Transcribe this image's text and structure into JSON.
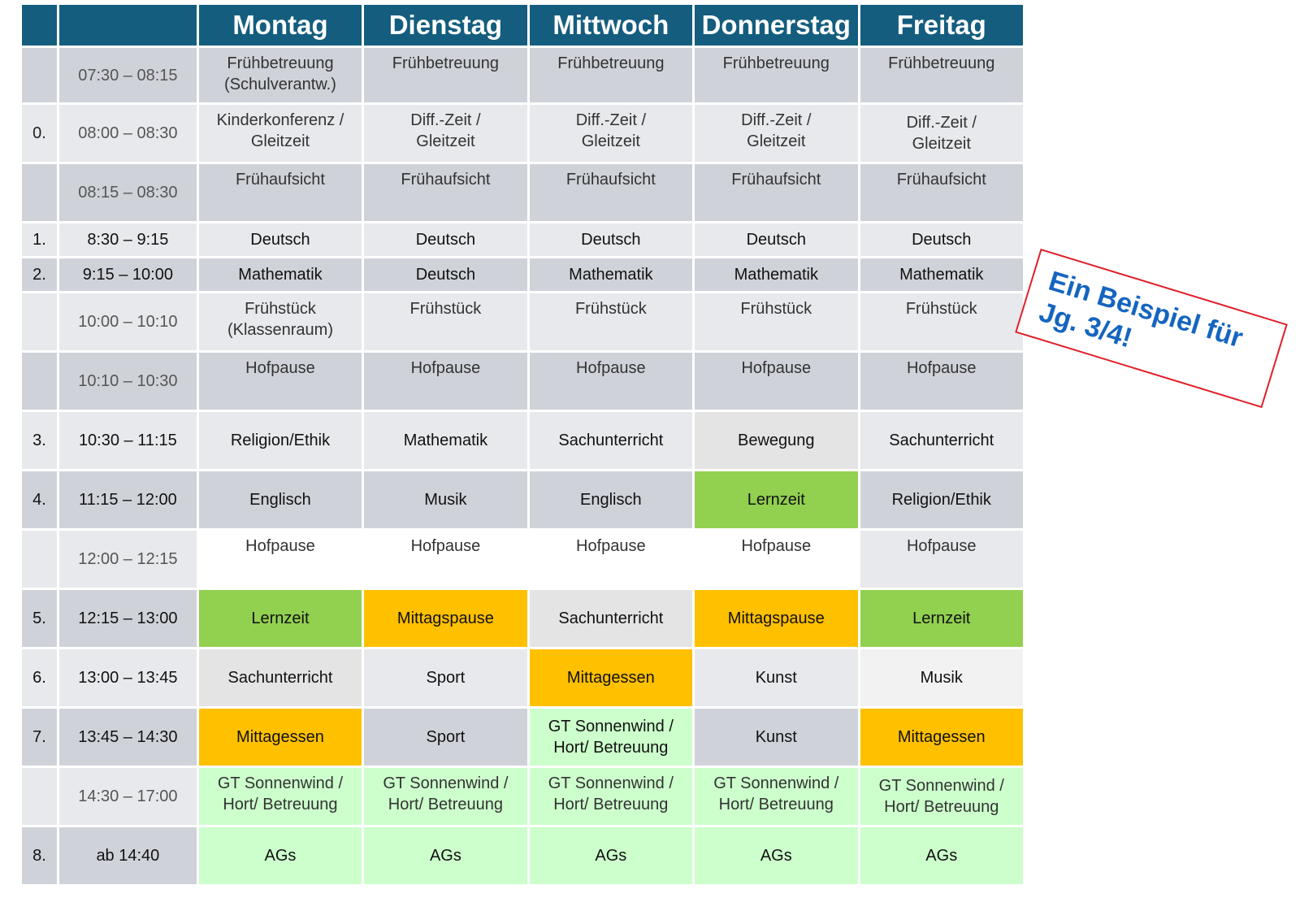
{
  "colors": {
    "header": "#145d7e",
    "dark": "#cfd3d9",
    "light": "#e7e9ec",
    "grey": "#e4e4e4",
    "verylight": "#f2f2f2",
    "white": "#ffffff",
    "green": "#92d050",
    "orange": "#ffc000",
    "lightgreen": "#ccffcc",
    "stamp_border": "#e0202a",
    "stamp_text": "#1565c0"
  },
  "header": {
    "days": [
      "Montag",
      "Dienstag",
      "Mittwoch",
      "Donnerstag",
      "Freitag"
    ]
  },
  "rows": [
    {
      "num": "",
      "time": "07:30 – 08:15",
      "type": "sub",
      "height": 70,
      "bg": "dark",
      "cells": [
        {
          "text": "Frühbetreuung\n(Schulverantw.)"
        },
        {
          "text": "Frühbetreuung"
        },
        {
          "text": "Frühbetreuung"
        },
        {
          "text": "Frühbetreuung"
        },
        {
          "text": "Frühbetreuung"
        }
      ]
    },
    {
      "num": "0.",
      "time": "08:00 – 08:30",
      "type": "sub",
      "height": 73,
      "bg": "light",
      "cells": [
        {
          "text": "Kinderkonferenz /\nGleitzeit"
        },
        {
          "text": "Diff.-Zeit /\nGleitzeit"
        },
        {
          "text": "Diff.-Zeit /\nGleitzeit"
        },
        {
          "text": "Diff.-Zeit /\nGleitzeit"
        },
        {
          "text": "Diff.-Zeit /\nGleitzeit",
          "mid": true
        }
      ]
    },
    {
      "num": "",
      "time": "08:15 – 08:30",
      "type": "sub",
      "height": 73,
      "bg": "dark",
      "cells": [
        {
          "text": "Frühaufsicht"
        },
        {
          "text": "Frühaufsicht"
        },
        {
          "text": "Frühaufsicht"
        },
        {
          "text": "Frühaufsicht"
        },
        {
          "text": "Frühaufsicht"
        }
      ]
    },
    {
      "num": "1.",
      "time": "8:30 – 9:15",
      "type": "main",
      "height": 43,
      "bg": "light",
      "cells": [
        {
          "text": "Deutsch"
        },
        {
          "text": "Deutsch"
        },
        {
          "text": "Deutsch"
        },
        {
          "text": "Deutsch"
        },
        {
          "text": "Deutsch"
        }
      ]
    },
    {
      "num": "2.",
      "time": "9:15 – 10:00",
      "type": "main",
      "height": 43,
      "bg": "dark",
      "cells": [
        {
          "text": "Mathematik"
        },
        {
          "text": "Deutsch"
        },
        {
          "text": "Mathematik"
        },
        {
          "text": "Mathematik"
        },
        {
          "text": "Mathematik"
        }
      ]
    },
    {
      "num": "",
      "time": "10:00 – 10:10",
      "type": "sub",
      "height": 73,
      "bg": "light",
      "cells": [
        {
          "text": "Frühstück\n(Klassenraum)"
        },
        {
          "text": "Frühstück"
        },
        {
          "text": "Frühstück"
        },
        {
          "text": "Frühstück"
        },
        {
          "text": "Frühstück"
        }
      ]
    },
    {
      "num": "",
      "time": "10:10 – 10:30",
      "type": "sub",
      "height": 73,
      "bg": "dark",
      "cells": [
        {
          "text": "Hofpause"
        },
        {
          "text": "Hofpause"
        },
        {
          "text": "Hofpause"
        },
        {
          "text": "Hofpause"
        },
        {
          "text": "Hofpause"
        }
      ]
    },
    {
      "num": "3.",
      "time": "10:30 – 11:15",
      "type": "main",
      "height": 73,
      "bg": "light",
      "cells": [
        {
          "text": "Religion/Ethik"
        },
        {
          "text": "Mathematik"
        },
        {
          "text": "Sachunterricht"
        },
        {
          "text": "Bewegung",
          "bg": "grey"
        },
        {
          "text": "Sachunterricht"
        }
      ]
    },
    {
      "num": "4.",
      "time": "11:15 – 12:00",
      "type": "main",
      "height": 73,
      "bg": "dark",
      "cells": [
        {
          "text": "Englisch"
        },
        {
          "text": "Musik"
        },
        {
          "text": "Englisch"
        },
        {
          "text": "Lernzeit",
          "bg": "green"
        },
        {
          "text": "Religion/Ethik"
        }
      ]
    },
    {
      "num": "",
      "time": "12:00 – 12:15",
      "type": "sub",
      "height": 73,
      "bg": "light",
      "cells": [
        {
          "text": "Hofpause",
          "bg": "white"
        },
        {
          "text": "Hofpause",
          "bg": "white"
        },
        {
          "text": "Hofpause",
          "bg": "white"
        },
        {
          "text": "Hofpause",
          "bg": "white"
        },
        {
          "text": "Hofpause"
        }
      ]
    },
    {
      "num": "5.",
      "time": "12:15 – 13:00",
      "type": "main",
      "height": 73,
      "bg": "dark",
      "cells": [
        {
          "text": "Lernzeit",
          "bg": "green"
        },
        {
          "text": "Mittagspause",
          "bg": "orange"
        },
        {
          "text": "Sachunterricht",
          "bg": "grey"
        },
        {
          "text": "Mittagspause",
          "bg": "orange"
        },
        {
          "text": "Lernzeit",
          "bg": "green"
        }
      ]
    },
    {
      "num": "6.",
      "time": "13:00 – 13:45",
      "type": "main",
      "height": 73,
      "bg": "light",
      "cells": [
        {
          "text": "Sachunterricht",
          "bg": "grey"
        },
        {
          "text": "Sport"
        },
        {
          "text": "Mittagessen",
          "bg": "orange"
        },
        {
          "text": "Kunst"
        },
        {
          "text": "Musik",
          "bg": "verylight"
        }
      ]
    },
    {
      "num": "7.",
      "time": "13:45 – 14:30",
      "type": "main",
      "height": 73,
      "bg": "dark",
      "cells": [
        {
          "text": "Mittagessen",
          "bg": "orange"
        },
        {
          "text": "Sport"
        },
        {
          "text": "GT Sonnenwind /\nHort/ Betreuung",
          "bg": "lightgreen"
        },
        {
          "text": "Kunst"
        },
        {
          "text": "Mittagessen",
          "bg": "orange"
        }
      ]
    },
    {
      "num": "",
      "time": "14:30 – 17:00",
      "type": "sub",
      "height": 73,
      "bg": "light",
      "cells": [
        {
          "text": "GT Sonnenwind /\nHort/ Betreuung",
          "bg": "lightgreen"
        },
        {
          "text": "GT Sonnenwind  /\nHort/ Betreuung",
          "bg": "lightgreen"
        },
        {
          "text": "GT Sonnenwind  /\nHort/ Betreuung",
          "bg": "lightgreen"
        },
        {
          "text": "GT Sonnenwind  /\nHort/ Betreuung",
          "bg": "lightgreen"
        },
        {
          "text": "GT Sonnenwind  /\nHort/ Betreuung",
          "bg": "lightgreen",
          "mid": true
        }
      ]
    },
    {
      "num": "8.",
      "time": "ab 14:40",
      "type": "main",
      "height": 73,
      "bg": "dark",
      "cells": [
        {
          "text": "AGs",
          "bg": "lightgreen"
        },
        {
          "text": "AGs",
          "bg": "lightgreen"
        },
        {
          "text": "AGs",
          "bg": "lightgreen"
        },
        {
          "text": "AGs",
          "bg": "lightgreen"
        },
        {
          "text": "AGs",
          "bg": "lightgreen"
        }
      ]
    }
  ],
  "stamp": {
    "line1": "Ein Beispiel für",
    "line2": "Jg. 3/4!"
  }
}
